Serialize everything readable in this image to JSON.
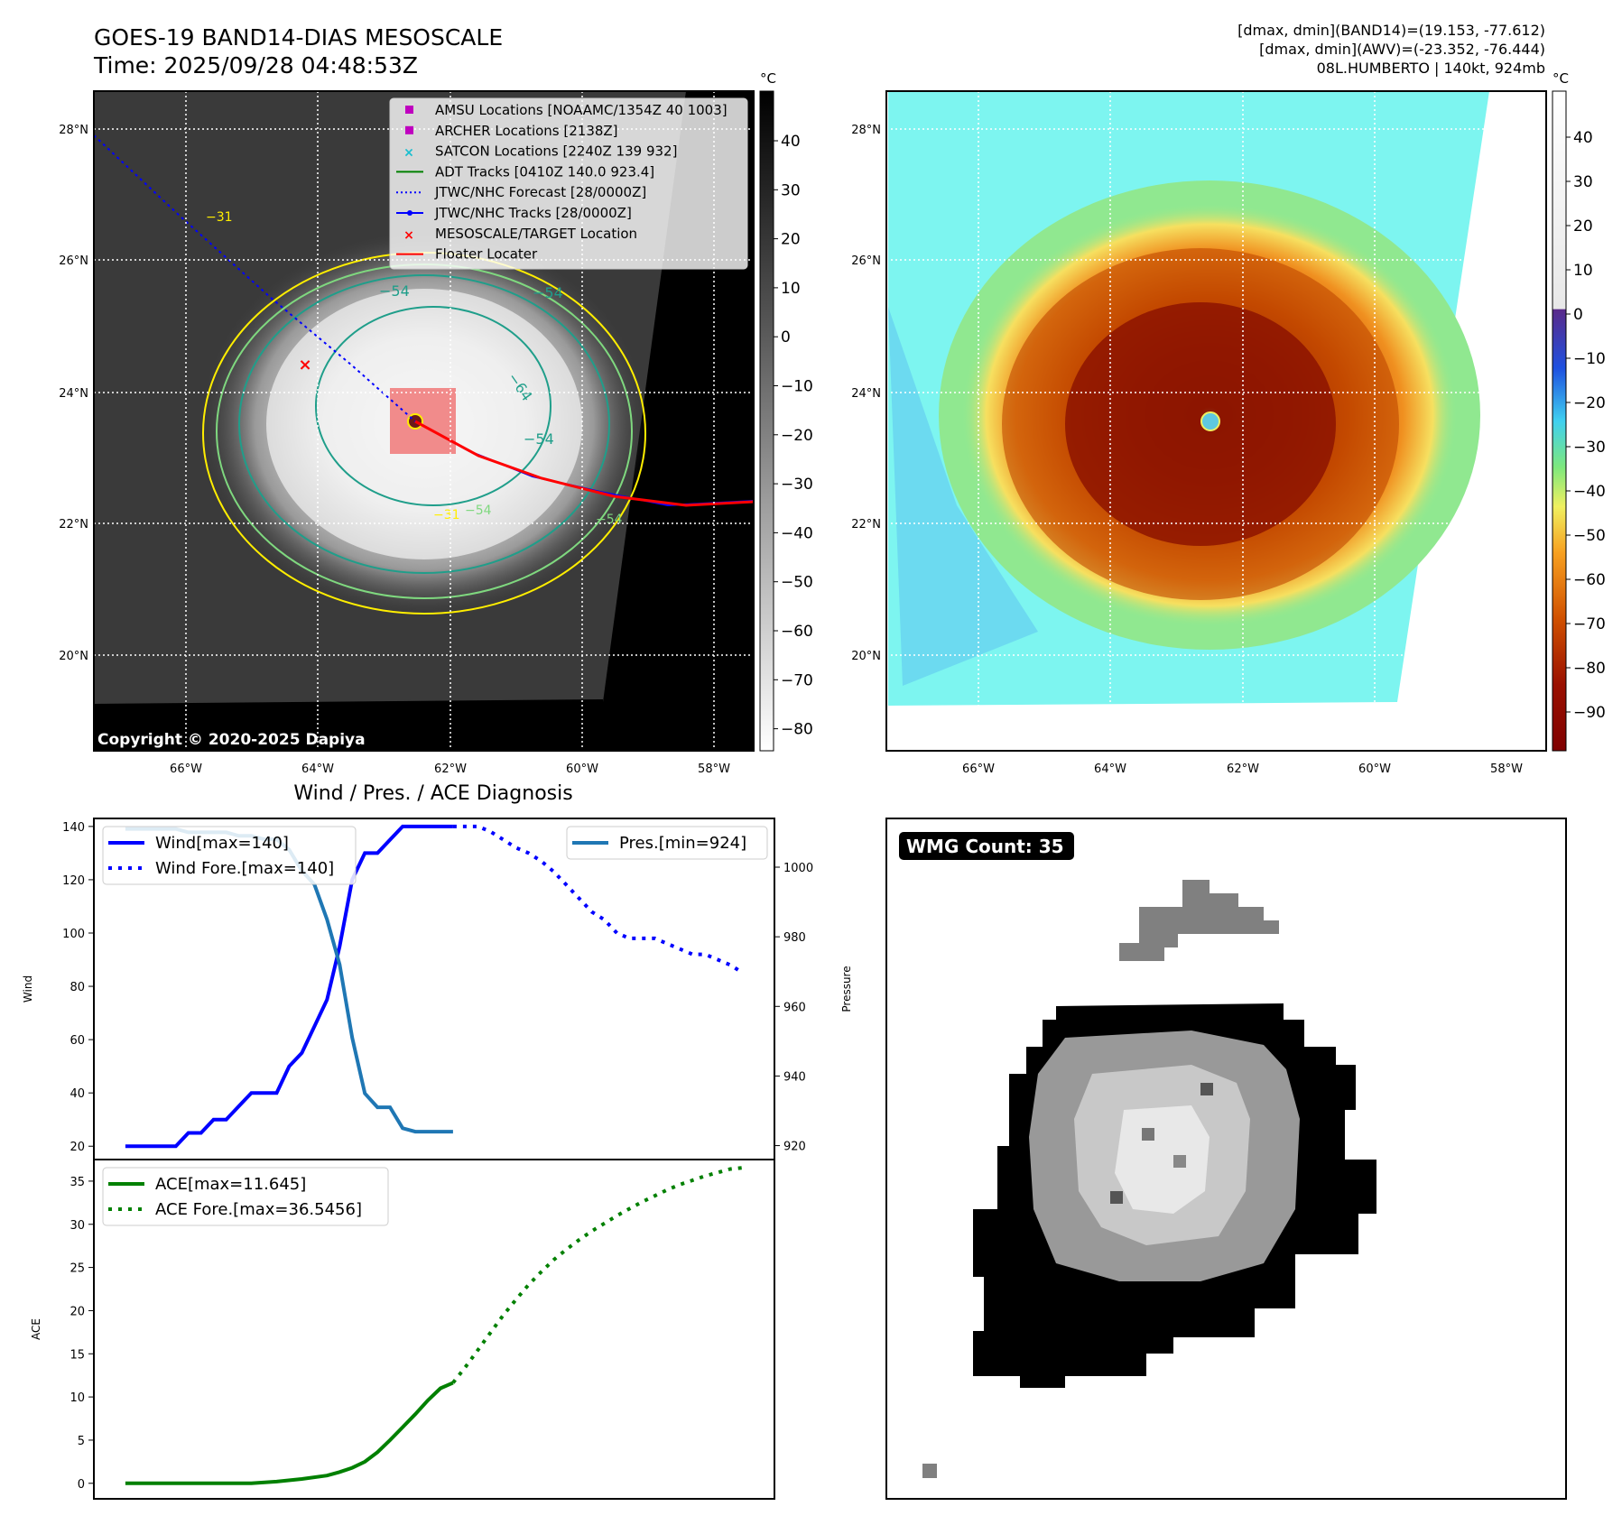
{
  "header": {
    "title_line1": "GOES-19 BAND14-DIAS MESOSCALE",
    "title_line2": "Time: 2025/09/28 04:48:53Z",
    "info_line1": "[dmax, dmin](BAND14)=(19.153, -77.612)",
    "info_line2": "[dmax, dmin](AWV)=(-23.352, -76.444)",
    "info_line3": "08L.HUMBERTO | 140kt, 924mb"
  },
  "maps": {
    "lon_labels": [
      "66°W",
      "64°W",
      "62°W",
      "60°W",
      "58°W"
    ],
    "lat_labels": [
      "28°N",
      "26°N",
      "24°N",
      "22°N",
      "20°N"
    ],
    "copyright": "Copyright © 2020-2025 Dapiya",
    "colorbar_unit": "°C",
    "left_colorbar_ticks": [
      "40",
      "30",
      "20",
      "10",
      "0",
      "−10",
      "−20",
      "−30",
      "−40",
      "−50",
      "−60",
      "−70",
      "−80"
    ],
    "right_colorbar_ticks": [
      "40",
      "30",
      "20",
      "10",
      "0",
      "−10",
      "−20",
      "−30",
      "−40",
      "−50",
      "−60",
      "−70",
      "−80",
      "−90"
    ],
    "contour_labels": [
      "−54",
      "−54",
      "−64",
      "−54",
      "−31",
      "−31",
      "−54",
      "−54"
    ],
    "legend": [
      {
        "label": "AMSU Locations [NOAAMC/1354Z 40 1003]",
        "color": "#bf00bf",
        "marker": "square"
      },
      {
        "label": "ARCHER Locations [2138Z]",
        "color": "#bf00bf",
        "marker": "square"
      },
      {
        "label": "SATCON Locations [2240Z 139 932]",
        "color": "#17becf",
        "marker": "x"
      },
      {
        "label": "ADT Tracks [0410Z 140.0 923.4]",
        "color": "#008000",
        "marker": "line"
      },
      {
        "label": "JTWC/NHC Forecast [28/0000Z]",
        "color": "#0000ff",
        "marker": "dotted"
      },
      {
        "label": "JTWC/NHC Tracks [28/0000Z]",
        "color": "#0000ff",
        "marker": "line-dot"
      },
      {
        "label": "MESOSCALE/TARGET Location",
        "color": "#ff0000",
        "marker": "x"
      },
      {
        "label": "Floater Locater",
        "color": "#ff0000",
        "marker": "line"
      }
    ]
  },
  "wmg": {
    "label": "WMG Count: 35"
  },
  "chart_data": [
    {
      "type": "line",
      "title": "Wind / Pres. / ACE Diagnosis",
      "ylabel": "Wind",
      "ylabel_right": "Pressure",
      "ylim": [
        15,
        143
      ],
      "ylim_right": [
        916,
        1014
      ],
      "yticks": [
        20,
        40,
        60,
        80,
        100,
        120,
        140
      ],
      "yticks_right": [
        920,
        940,
        960,
        980,
        1000
      ],
      "x": [
        0,
        1,
        2,
        3,
        4,
        5,
        6,
        7,
        8,
        9,
        10,
        11,
        12,
        13,
        14,
        15,
        16,
        17,
        18,
        19,
        20,
        21,
        22,
        23,
        24,
        25,
        26,
        27,
        28,
        29,
        30,
        31,
        32,
        33,
        34,
        35,
        36,
        37,
        38,
        39,
        40,
        41,
        42,
        43,
        44,
        45,
        46,
        47,
        48,
        49
      ],
      "legend_left": "upper left",
      "legend_right": "upper right",
      "series": [
        {
          "name": "Wind[max=140]",
          "axis": "left",
          "style": "solid",
          "color": "#0000ff",
          "x": [
            0,
            1,
            2,
            3,
            4,
            5,
            6,
            7,
            8,
            9,
            10,
            11,
            12,
            13,
            14,
            15,
            16,
            17,
            18,
            19,
            20,
            21,
            22,
            23,
            24,
            25,
            26
          ],
          "values": [
            20,
            20,
            20,
            20,
            20,
            25,
            25,
            30,
            30,
            35,
            40,
            40,
            40,
            50,
            55,
            65,
            75,
            95,
            120,
            130,
            130,
            135,
            140,
            140,
            140,
            140,
            140
          ]
        },
        {
          "name": "Wind Fore.[max=140]",
          "axis": "left",
          "style": "dotted",
          "color": "#0000ff",
          "x": [
            26,
            27,
            28,
            29,
            30,
            31,
            32,
            33,
            34,
            35,
            36,
            37,
            38,
            39,
            40,
            41,
            42,
            43,
            44,
            45,
            46,
            47,
            48,
            49
          ],
          "values": [
            140,
            140,
            140,
            138,
            135,
            132,
            130,
            127,
            123,
            118,
            113,
            108,
            105,
            100,
            98,
            98,
            98,
            96,
            94,
            92,
            92,
            90,
            88,
            85
          ]
        },
        {
          "name": "Pres.[min=924]",
          "axis": "right",
          "style": "solid",
          "color": "#1f77b4",
          "x": [
            0,
            1,
            2,
            3,
            4,
            5,
            6,
            7,
            8,
            9,
            10,
            11,
            12,
            13,
            14,
            15,
            16,
            17,
            18,
            19,
            20,
            21,
            22,
            23,
            24,
            25,
            26
          ],
          "values": [
            1011,
            1011,
            1011,
            1011,
            1011,
            1010,
            1010,
            1010,
            1010,
            1009,
            1009,
            1008,
            1008,
            1005,
            999,
            995,
            985,
            972,
            951,
            935,
            931,
            931,
            925,
            924,
            924,
            924,
            924
          ]
        }
      ]
    },
    {
      "type": "line",
      "ylabel": "ACE",
      "ylim": [
        -1.8,
        37.5
      ],
      "yticks": [
        0,
        5,
        10,
        15,
        20,
        25,
        30,
        35
      ],
      "x": [
        0,
        1,
        2,
        3,
        4,
        5,
        6,
        7,
        8,
        9,
        10,
        11,
        12,
        13,
        14,
        15,
        16,
        17,
        18,
        19,
        20,
        21,
        22,
        23,
        24,
        25,
        26,
        27,
        28,
        29,
        30,
        31,
        32,
        33,
        34,
        35,
        36,
        37,
        38,
        39,
        40,
        41,
        42,
        43,
        44,
        45,
        46,
        47,
        48,
        49
      ],
      "legend": "upper left",
      "series": [
        {
          "name": "ACE[max=11.645]",
          "style": "solid",
          "color": "#008000",
          "x": [
            0,
            2,
            4,
            6,
            8,
            10,
            12,
            14,
            16,
            17,
            18,
            19,
            20,
            21,
            22,
            23,
            24,
            25,
            26
          ],
          "values": [
            0,
            0,
            0,
            0,
            0,
            0,
            0.2,
            0.5,
            0.9,
            1.3,
            1.8,
            2.5,
            3.6,
            5,
            6.5,
            8,
            9.6,
            11,
            11.645
          ]
        },
        {
          "name": "ACE Fore.[max=36.5456]",
          "style": "dotted",
          "color": "#008000",
          "x": [
            26,
            27,
            28,
            29,
            30,
            31,
            32,
            33,
            34,
            35,
            36,
            37,
            38,
            39,
            40,
            41,
            42,
            43,
            44,
            45,
            46,
            47,
            48,
            49
          ],
          "values": [
            11.645,
            13.5,
            15.5,
            17.5,
            19.5,
            21.3,
            23,
            24.5,
            25.9,
            27.1,
            28.2,
            29.2,
            30.1,
            31,
            31.8,
            32.6,
            33.3,
            34,
            34.6,
            35.1,
            35.6,
            36,
            36.4,
            36.5456
          ]
        }
      ]
    }
  ]
}
